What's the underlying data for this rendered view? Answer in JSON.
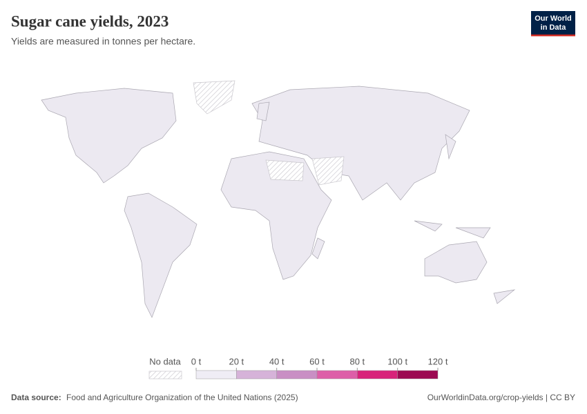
{
  "header": {
    "title": "Sugar cane yields, 2023",
    "subtitle": "Yields are measured in tonnes per hectare.",
    "logo": [
      "Our World",
      "in Data"
    ]
  },
  "legend": {
    "no_data": "No data",
    "ticks": [
      {
        "value": 0,
        "label": "0 t"
      },
      {
        "value": 20,
        "label": "20 t"
      },
      {
        "value": 40,
        "label": "40 t"
      },
      {
        "value": 60,
        "label": "60 t"
      },
      {
        "value": 80,
        "label": "80 t"
      },
      {
        "value": 100,
        "label": "100 t"
      },
      {
        "value": 120,
        "label": "120 t"
      }
    ],
    "colors": [
      "#efedf5",
      "#d6b3d9",
      "#c98fc4",
      "#dd5fa8",
      "#d8237a",
      "#9c0a52"
    ]
  },
  "footer": {
    "source_label": "Data source:",
    "source": "Food and Agriculture Organization of the United Nations (2025)",
    "url": "OurWorldinData.org/crop-yields | CC BY"
  }
}
